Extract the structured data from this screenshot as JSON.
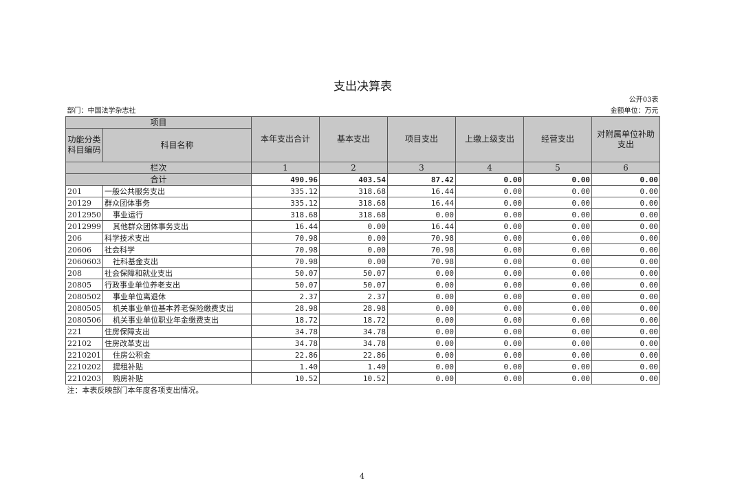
{
  "title": "支出决算表",
  "form_no": "公开03表",
  "department": "部门：中国法学杂志社",
  "unit": "金额单位：万元",
  "header": {
    "item": "项目",
    "code": "功能分类科目编码",
    "name": "科目名称",
    "columns": [
      "本年支出合计",
      "基本支出",
      "项目支出",
      "上缴上级支出",
      "经营支出",
      "对附属单位补助支出"
    ],
    "column_row_label": "栏次",
    "column_numbers": [
      "1",
      "2",
      "3",
      "4",
      "5",
      "6"
    ]
  },
  "total": {
    "label": "合计",
    "values": [
      "490.96",
      "403.54",
      "87.42",
      "0.00",
      "0.00",
      "0.00"
    ]
  },
  "rows": [
    {
      "code": "201",
      "name": "一般公共服务支出",
      "indent": false,
      "values": [
        "335.12",
        "318.68",
        "16.44",
        "0.00",
        "0.00",
        "0.00"
      ]
    },
    {
      "code": "20129",
      "name": "群众团体事务",
      "indent": false,
      "values": [
        "335.12",
        "318.68",
        "16.44",
        "0.00",
        "0.00",
        "0.00"
      ]
    },
    {
      "code": "2012950",
      "name": "事业运行",
      "indent": true,
      "values": [
        "318.68",
        "318.68",
        "0.00",
        "0.00",
        "0.00",
        "0.00"
      ]
    },
    {
      "code": "2012999",
      "name": "其他群众团体事务支出",
      "indent": true,
      "values": [
        "16.44",
        "0.00",
        "16.44",
        "0.00",
        "0.00",
        "0.00"
      ]
    },
    {
      "code": "206",
      "name": "科学技术支出",
      "indent": false,
      "values": [
        "70.98",
        "0.00",
        "70.98",
        "0.00",
        "0.00",
        "0.00"
      ]
    },
    {
      "code": "20606",
      "name": "社会科学",
      "indent": false,
      "values": [
        "70.98",
        "0.00",
        "70.98",
        "0.00",
        "0.00",
        "0.00"
      ]
    },
    {
      "code": "2060603",
      "name": "社科基金支出",
      "indent": true,
      "values": [
        "70.98",
        "0.00",
        "70.98",
        "0.00",
        "0.00",
        "0.00"
      ]
    },
    {
      "code": "208",
      "name": "社会保障和就业支出",
      "indent": false,
      "values": [
        "50.07",
        "50.07",
        "0.00",
        "0.00",
        "0.00",
        "0.00"
      ]
    },
    {
      "code": "20805",
      "name": "行政事业单位养老支出",
      "indent": false,
      "values": [
        "50.07",
        "50.07",
        "0.00",
        "0.00",
        "0.00",
        "0.00"
      ]
    },
    {
      "code": "2080502",
      "name": "事业单位离退休",
      "indent": true,
      "values": [
        "2.37",
        "2.37",
        "0.00",
        "0.00",
        "0.00",
        "0.00"
      ]
    },
    {
      "code": "2080505",
      "name": "机关事业单位基本养老保险缴费支出",
      "indent": true,
      "values": [
        "28.98",
        "28.98",
        "0.00",
        "0.00",
        "0.00",
        "0.00"
      ]
    },
    {
      "code": "2080506",
      "name": "机关事业单位职业年金缴费支出",
      "indent": true,
      "values": [
        "18.72",
        "18.72",
        "0.00",
        "0.00",
        "0.00",
        "0.00"
      ]
    },
    {
      "code": "221",
      "name": "住房保障支出",
      "indent": false,
      "values": [
        "34.78",
        "34.78",
        "0.00",
        "0.00",
        "0.00",
        "0.00"
      ]
    },
    {
      "code": "22102",
      "name": "住房改革支出",
      "indent": false,
      "values": [
        "34.78",
        "34.78",
        "0.00",
        "0.00",
        "0.00",
        "0.00"
      ]
    },
    {
      "code": "2210201",
      "name": "住房公积金",
      "indent": true,
      "values": [
        "22.86",
        "22.86",
        "0.00",
        "0.00",
        "0.00",
        "0.00"
      ]
    },
    {
      "code": "2210202",
      "name": "提租补贴",
      "indent": true,
      "values": [
        "1.40",
        "1.40",
        "0.00",
        "0.00",
        "0.00",
        "0.00"
      ]
    },
    {
      "code": "2210203",
      "name": "购房补贴",
      "indent": true,
      "values": [
        "10.52",
        "10.52",
        "0.00",
        "0.00",
        "0.00",
        "0.00"
      ]
    }
  ],
  "note": "注：本表反映部门本年度各项支出情况。",
  "page_number": "4"
}
